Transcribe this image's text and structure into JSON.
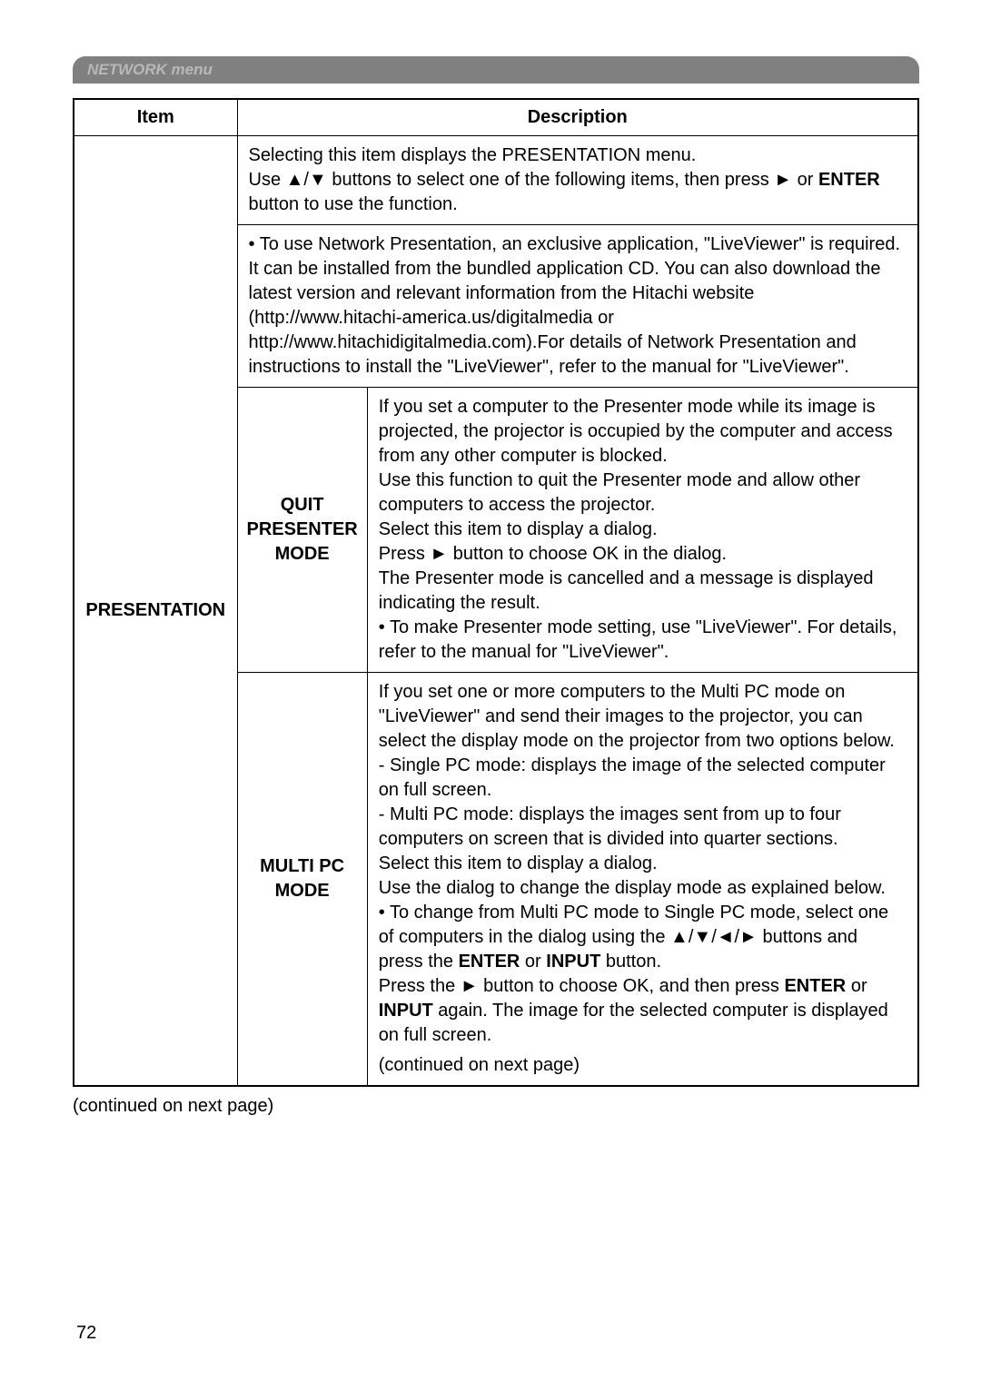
{
  "header": {
    "label": "NETWORK menu"
  },
  "table": {
    "headers": {
      "item": "Item",
      "description": "Description"
    },
    "rows": {
      "presentation_label": "PRESENTATION",
      "intro_text": "Selecting this item displays the PRESENTATION menu.\nUse ▲/▼ buttons to select one of the following items, then press ► or ENTER button to use the function.",
      "liveviewer_text": "• To use Network Presentation, an exclusive application, \"LiveViewer\" is required. It can be installed from the bundled application CD. You can also download the latest version and relevant information from the Hitachi website (http://www.hitachi-america.us/digitalmedia or http://www.hitachidigitalmedia.com).For details of Network Presentation and instructions to install the \"LiveViewer\", refer to the manual for \"LiveViewer\".",
      "quit_presenter": {
        "label": "QUIT PRESENTER MODE",
        "text": "If you set a computer to the Presenter mode while its image is projected, the projector is occupied by the computer and access from any other computer is blocked.\nUse this function to quit the Presenter mode and allow other computers to access the projector.\nSelect this item to display a dialog.\nPress ► button to choose OK in the dialog.\nThe Presenter mode is cancelled and a message is displayed indicating the result.\n• To make Presenter mode setting, use \"LiveViewer\". For details, refer to the manual for \"LiveViewer\"."
      },
      "multi_pc": {
        "label": "MULTI PC MODE",
        "text_part": "If you set one or more computers to the Multi PC mode on \"LiveViewer\" and send their images to the projector, you can select the display mode on the projector from two options below.\n- Single PC mode: displays the image of the selected computer on full screen.\n- Multi PC mode: displays the images sent from up to four computers on screen that is divided into quarter sections.\nSelect this item to display a dialog.\nUse the dialog to change the display mode as explained below.\n• To change from Multi PC mode to Single PC mode, select one of computers in the dialog using the ▲/▼/◄/► buttons and press the ENTER or INPUT button.\nPress the ► button to choose OK, and then press ENTER or INPUT again. The image for the selected computer is displayed on full screen.",
        "continued": "(continued on next page)"
      }
    }
  },
  "footer": {
    "continued": "(continued on next page)",
    "page_number": "72"
  }
}
